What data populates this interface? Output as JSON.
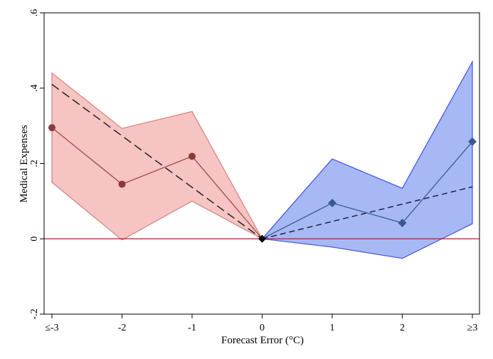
{
  "chart_data": {
    "type": "line",
    "title": "",
    "xlabel": "Forecast Error (°C)",
    "ylabel": "Medical Expenses",
    "xlim": [
      -3,
      3
    ],
    "ylim": [
      -0.2,
      0.6
    ],
    "x_ticks": [
      {
        "value": -3,
        "label": "≤-3"
      },
      {
        "value": -2,
        "label": "-2"
      },
      {
        "value": -1,
        "label": "-1"
      },
      {
        "value": 0,
        "label": "0"
      },
      {
        "value": 1,
        "label": "1"
      },
      {
        "value": 2,
        "label": "2"
      },
      {
        "value": 3,
        "label": "≥3"
      }
    ],
    "y_ticks": [
      {
        "value": -0.2,
        "label": "-.2"
      },
      {
        "value": 0,
        "label": "0"
      },
      {
        "value": 0.2,
        "label": ".2"
      },
      {
        "value": 0.4,
        "label": ".4"
      },
      {
        "value": 0.6,
        "label": ".6"
      }
    ],
    "grid": false,
    "reference_line": {
      "y": 0,
      "color": "#c0163a"
    },
    "series": [
      {
        "side": "negative",
        "x": [
          -3,
          -2,
          -1,
          0
        ],
        "y": [
          0.295,
          0.145,
          0.219,
          0.0
        ],
        "ci_upper": [
          0.44,
          0.293,
          0.338,
          0.0
        ],
        "ci_lower": [
          0.15,
          -0.003,
          0.1,
          0.0
        ],
        "marker": "circle",
        "line_color": "#9e4a46",
        "marker_color": "#8b3a3a",
        "band_fill": "#f6c4c2",
        "band_edge": "#d98886"
      },
      {
        "side": "positive",
        "x": [
          0,
          1,
          2,
          3
        ],
        "y": [
          0.0,
          0.095,
          0.042,
          0.258
        ],
        "ci_upper": [
          0.0,
          0.212,
          0.134,
          0.47
        ],
        "ci_lower": [
          0.0,
          -0.022,
          -0.052,
          0.04
        ],
        "marker": "diamond",
        "line_color": "#3f5b8f",
        "marker_color": "#3a5a8c",
        "band_fill": "#a6b9f4",
        "band_edge": "#4a5ae8"
      }
    ],
    "trend_lines": [
      {
        "x": [
          -3,
          0
        ],
        "y": [
          0.41,
          0.0
        ],
        "style": "dashed",
        "color": "#222222"
      },
      {
        "x": [
          0,
          3
        ],
        "y": [
          0.0,
          0.138
        ],
        "style": "dashed",
        "color": "#222244"
      }
    ],
    "center_marker": {
      "x": 0,
      "y": 0,
      "shape": "diamond",
      "color": "#000000"
    }
  }
}
